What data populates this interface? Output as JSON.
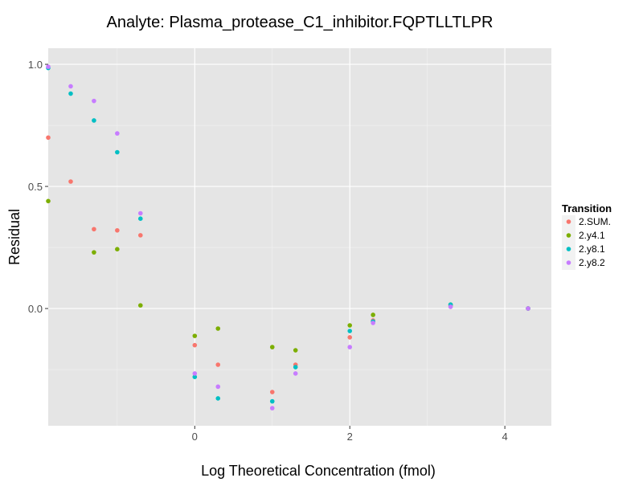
{
  "chart_data": {
    "type": "scatter",
    "title": "Analyte: Plasma_protease_C1_inhibitor.FQPTLLTLPR",
    "xlabel": "Log Theoretical Concentration (fmol)",
    "ylabel": "Residual",
    "xlim": [
      -1.89,
      4.6
    ],
    "ylim": [
      -0.48,
      1.066
    ],
    "xticks": [
      0,
      2,
      4
    ],
    "xtick_labels": [
      "0",
      "2",
      "4"
    ],
    "yticks": [
      0.0,
      0.5,
      1.0
    ],
    "ytick_labels": [
      "0.0",
      "0.5",
      "1.0"
    ],
    "grid": true,
    "legend": {
      "title": "Transition",
      "position": "right"
    },
    "x": [
      -1.89,
      -1.6,
      -1.3,
      -1.0,
      -0.7,
      0,
      0.3,
      1.0,
      1.3,
      2.0,
      2.3,
      3.3,
      4.3
    ],
    "series": [
      {
        "name": "2.SUM.",
        "color": "#F8766D",
        "values": [
          0.7,
          0.52,
          0.325,
          0.32,
          0.3,
          -0.15,
          -0.23,
          -0.342,
          -0.23,
          -0.118,
          -0.049,
          0.01,
          0.0
        ]
      },
      {
        "name": "2.y4.1",
        "color": "#7CAE00",
        "values": [
          0.44,
          null,
          0.23,
          0.243,
          0.013,
          -0.112,
          -0.082,
          -0.158,
          -0.171,
          -0.069,
          -0.026,
          0.016,
          0.0
        ]
      },
      {
        "name": "2.y8.1",
        "color": "#00BFC4",
        "values": [
          0.985,
          0.88,
          0.77,
          0.64,
          0.368,
          -0.28,
          -0.368,
          -0.38,
          -0.24,
          -0.092,
          -0.053,
          0.016,
          0.0
        ]
      },
      {
        "name": "2.y8.2",
        "color": "#C77CFF",
        "values": [
          0.99,
          0.91,
          0.85,
          0.717,
          0.39,
          -0.266,
          -0.32,
          -0.408,
          -0.266,
          -0.158,
          -0.059,
          0.007,
          0.0
        ]
      }
    ]
  }
}
